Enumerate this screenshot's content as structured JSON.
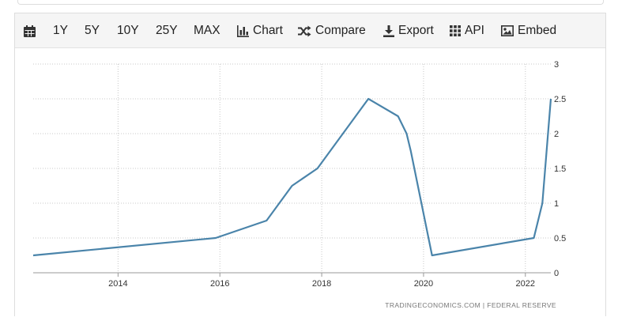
{
  "toolbar": {
    "items": [
      {
        "label": "",
        "icon": "calendar-icon"
      },
      {
        "label": "1Y"
      },
      {
        "label": "5Y"
      },
      {
        "label": "10Y"
      },
      {
        "label": "25Y"
      },
      {
        "label": "MAX"
      },
      {
        "label": "Chart",
        "icon": "bar-chart-icon"
      },
      {
        "label": "Compare",
        "icon": "shuffle-icon"
      },
      {
        "label": "Export",
        "icon": "download-icon"
      },
      {
        "label": "API",
        "icon": "grid-icon"
      },
      {
        "label": "Embed",
        "icon": "image-icon"
      }
    ]
  },
  "source": {
    "text": "TRADINGECONOMICS.COM  |  FEDERAL RESERVE"
  },
  "chart_data": {
    "type": "line",
    "title": "",
    "xlabel": "",
    "ylabel": "",
    "xlim": [
      "2012-05",
      "2022-07"
    ],
    "ylim": [
      0,
      3
    ],
    "x_ticks": [
      "2014",
      "2016",
      "2018",
      "2020",
      "2022"
    ],
    "y_ticks": [
      "0",
      "0.5",
      "1",
      "1.5",
      "2",
      "2.5",
      "3"
    ],
    "grid": true,
    "line_color": "#4a84aa",
    "series": [
      {
        "name": "",
        "step": true,
        "points": [
          [
            "2012-05",
            0.25
          ],
          [
            "2015-12",
            0.5
          ],
          [
            "2016-12",
            0.75
          ],
          [
            "2017-03",
            1.0
          ],
          [
            "2017-06",
            1.25
          ],
          [
            "2017-12",
            1.5
          ],
          [
            "2018-03",
            1.75
          ],
          [
            "2018-06",
            2.0
          ],
          [
            "2018-09",
            2.25
          ],
          [
            "2018-12",
            2.5
          ],
          [
            "2019-07",
            2.25
          ],
          [
            "2019-09",
            2.0
          ],
          [
            "2019-10",
            1.75
          ],
          [
            "2020-03",
            0.25
          ],
          [
            "2022-03",
            0.5
          ],
          [
            "2022-05",
            1.0
          ],
          [
            "2022-07",
            2.5
          ]
        ]
      }
    ]
  }
}
